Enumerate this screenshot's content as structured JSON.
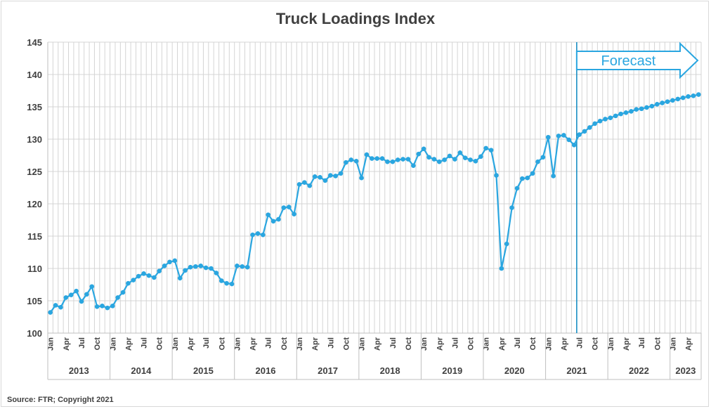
{
  "chart_data": {
    "type": "line",
    "title": "Truck Loadings Index",
    "source": "Source: FTR; Copyright 2021",
    "ylim": [
      100,
      145
    ],
    "y_ticks": [
      100,
      105,
      110,
      115,
      120,
      125,
      130,
      135,
      140,
      145
    ],
    "grid": "vertical-monthly and horizontal",
    "month_labels": [
      "Jan",
      "Apr",
      "Jul",
      "Oct"
    ],
    "years": [
      "2013",
      "2014",
      "2015",
      "2016",
      "2017",
      "2018",
      "2019",
      "2020",
      "2021",
      "2022",
      "2023"
    ],
    "start": "2013-01",
    "series": [
      {
        "color": "#2aa6e0",
        "values": [
          103.2,
          104.3,
          104.0,
          105.5,
          105.9,
          106.5,
          104.9,
          106.0,
          107.2,
          104.1,
          104.2,
          103.9,
          104.2,
          105.5,
          106.3,
          107.7,
          108.2,
          108.8,
          109.2,
          108.9,
          108.6,
          109.6,
          110.4,
          111.0,
          111.2,
          108.5,
          109.7,
          110.2,
          110.3,
          110.4,
          110.1,
          110.0,
          109.3,
          108.1,
          107.7,
          107.6,
          110.4,
          110.3,
          110.2,
          115.2,
          115.4,
          115.2,
          118.3,
          117.3,
          117.6,
          119.4,
          119.5,
          118.4,
          123.0,
          123.3,
          122.8,
          124.2,
          124.1,
          123.6,
          124.4,
          124.3,
          124.7,
          126.4,
          126.8,
          126.6,
          124.0,
          127.6,
          127.0,
          127.0,
          127.0,
          126.5,
          126.5,
          126.8,
          126.9,
          126.9,
          125.9,
          127.7,
          128.5,
          127.2,
          126.9,
          126.5,
          126.8,
          127.4,
          126.9,
          127.9,
          127.1,
          126.8,
          126.6,
          127.3,
          128.6,
          128.3,
          124.4,
          110.0,
          113.8,
          119.4,
          122.4,
          123.9,
          124.0,
          124.7,
          126.5,
          127.2,
          130.3,
          124.3,
          130.5,
          130.6,
          129.9,
          129.1,
          130.7,
          131.2,
          131.8,
          132.4,
          132.8,
          133.1,
          133.3,
          133.6,
          133.9,
          134.1,
          134.3,
          134.6,
          134.7,
          134.9,
          135.1,
          135.4,
          135.6,
          135.8,
          136.0,
          136.2,
          136.4,
          136.6,
          136.7,
          136.9
        ]
      }
    ],
    "forecast": {
      "label": "Forecast",
      "start": "2021-07"
    }
  }
}
